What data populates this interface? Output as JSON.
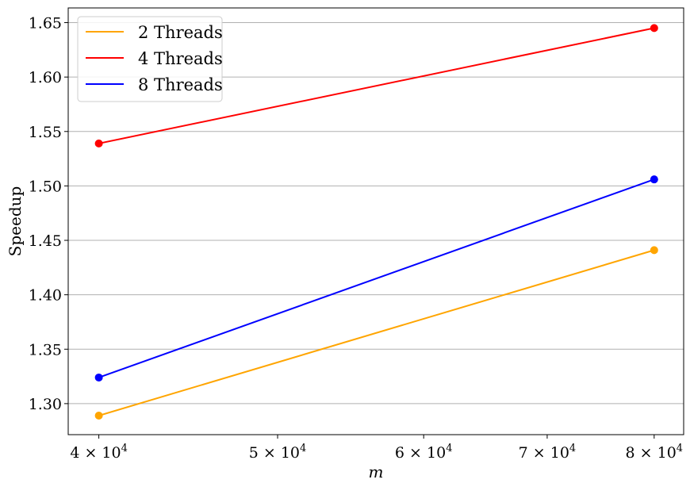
{
  "chart_data": {
    "type": "line",
    "title": "",
    "xlabel": "m",
    "ylabel": "Speedup",
    "x_scale": "log",
    "x": [
      40000,
      80000
    ],
    "xlim": [
      38500,
      83000
    ],
    "ylim": [
      1.2715,
      1.6635
    ],
    "x_ticks": [
      {
        "value": 40000,
        "mantissa": "4",
        "exponent": "4"
      },
      {
        "value": 50000,
        "mantissa": "5",
        "exponent": "4"
      },
      {
        "value": 60000,
        "mantissa": "6",
        "exponent": "4"
      },
      {
        "value": 70000,
        "mantissa": "7",
        "exponent": "4"
      },
      {
        "value": 80000,
        "mantissa": "8",
        "exponent": "4"
      }
    ],
    "times_symbol": "×",
    "tick_base": "10",
    "y_ticks": [
      {
        "value": 1.3,
        "label": "1.30"
      },
      {
        "value": 1.35,
        "label": "1.35"
      },
      {
        "value": 1.4,
        "label": "1.40"
      },
      {
        "value": 1.45,
        "label": "1.45"
      },
      {
        "value": 1.5,
        "label": "1.50"
      },
      {
        "value": 1.55,
        "label": "1.55"
      },
      {
        "value": 1.6,
        "label": "1.60"
      },
      {
        "value": 1.65,
        "label": "1.65"
      }
    ],
    "grid": {
      "y": true,
      "x": false
    },
    "legend_position": "top-left",
    "series": [
      {
        "name": "2 Threads",
        "color": "#ffa500",
        "values": [
          1.289,
          1.441
        ]
      },
      {
        "name": "4 Threads",
        "color": "#ff0000",
        "values": [
          1.539,
          1.645
        ]
      },
      {
        "name": "8 Threads",
        "color": "#0000ff",
        "values": [
          1.324,
          1.506
        ]
      }
    ]
  }
}
